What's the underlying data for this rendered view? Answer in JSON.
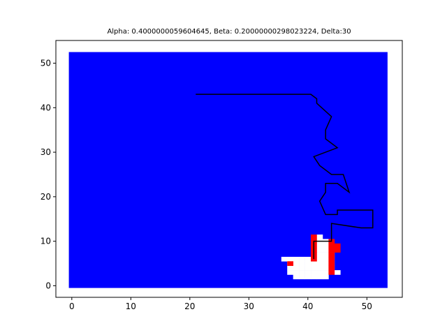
{
  "chart_data": {
    "type": "scatter",
    "title": "Alpha: 0.4000000059604645, Beta: 0.20000000298023224, Delta:30",
    "xlabel": "",
    "ylabel": "",
    "xlim": [
      -2.7,
      56.0
    ],
    "ylim": [
      -2.6,
      55.1
    ],
    "xticks": [
      0,
      10,
      20,
      30,
      40,
      50
    ],
    "yticks": [
      0,
      10,
      20,
      30,
      40,
      50
    ],
    "grid": false,
    "colors": {
      "grid_fill": "#0000ff",
      "free_cells": "#ffffff",
      "marked_cells": "#ff0000",
      "path": "#000000",
      "axes": "#000000"
    },
    "grid_extent": {
      "x": [
        -0.5,
        53.5
      ],
      "y": [
        -0.5,
        52.5
      ]
    },
    "free_cells": [
      [
        36,
        6
      ],
      [
        37,
        6
      ],
      [
        38,
        6
      ],
      [
        39,
        6
      ],
      [
        40,
        6
      ],
      [
        41,
        6
      ],
      [
        42,
        6
      ],
      [
        43,
        6
      ],
      [
        37,
        5
      ],
      [
        38,
        5
      ],
      [
        39,
        5
      ],
      [
        40,
        5
      ],
      [
        41,
        5
      ],
      [
        42,
        5
      ],
      [
        43,
        5
      ],
      [
        44,
        5
      ],
      [
        37,
        4
      ],
      [
        38,
        4
      ],
      [
        39,
        4
      ],
      [
        40,
        4
      ],
      [
        41,
        4
      ],
      [
        42,
        4
      ],
      [
        43,
        4
      ],
      [
        44,
        4
      ],
      [
        37,
        3
      ],
      [
        38,
        3
      ],
      [
        39,
        3
      ],
      [
        40,
        3
      ],
      [
        41,
        3
      ],
      [
        42,
        3
      ],
      [
        43,
        3
      ],
      [
        45,
        3
      ],
      [
        38,
        2
      ],
      [
        39,
        2
      ],
      [
        40,
        2
      ],
      [
        41,
        2
      ],
      [
        42,
        2
      ],
      [
        43,
        2
      ],
      [
        42,
        10
      ],
      [
        42,
        9
      ],
      [
        42,
        8
      ],
      [
        42,
        7
      ],
      [
        43,
        9
      ],
      [
        43,
        8
      ],
      [
        43,
        7
      ],
      [
        44,
        7
      ],
      [
        44,
        6
      ],
      [
        42,
        11
      ],
      [
        43,
        10
      ]
    ],
    "marked_cells": [
      [
        37,
        5
      ],
      [
        41,
        11
      ],
      [
        41,
        10
      ],
      [
        41,
        9
      ],
      [
        41,
        8
      ],
      [
        41,
        7
      ],
      [
        41,
        6
      ],
      [
        44,
        10
      ],
      [
        44,
        9
      ],
      [
        45,
        9
      ],
      [
        45,
        8
      ],
      [
        44,
        8
      ],
      [
        44,
        7
      ],
      [
        44,
        6
      ],
      [
        44,
        5
      ],
      [
        44,
        4
      ],
      [
        44,
        3
      ]
    ],
    "path": [
      [
        21,
        43
      ],
      [
        40.5,
        43
      ],
      [
        41.5,
        42
      ],
      [
        41.5,
        41
      ],
      [
        44,
        38
      ],
      [
        43,
        35
      ],
      [
        43,
        33
      ],
      [
        45,
        31
      ],
      [
        41,
        29
      ],
      [
        42,
        27
      ],
      [
        44,
        25
      ],
      [
        46,
        25
      ],
      [
        47,
        21
      ],
      [
        45,
        23
      ],
      [
        43,
        23
      ],
      [
        43,
        21
      ],
      [
        42,
        19
      ],
      [
        43,
        16
      ],
      [
        45,
        16
      ],
      [
        45,
        17
      ],
      [
        51,
        17
      ],
      [
        51,
        13
      ],
      [
        49,
        13
      ],
      [
        44,
        14
      ],
      [
        44,
        10
      ],
      [
        41,
        10
      ],
      [
        41,
        6
      ]
    ]
  }
}
